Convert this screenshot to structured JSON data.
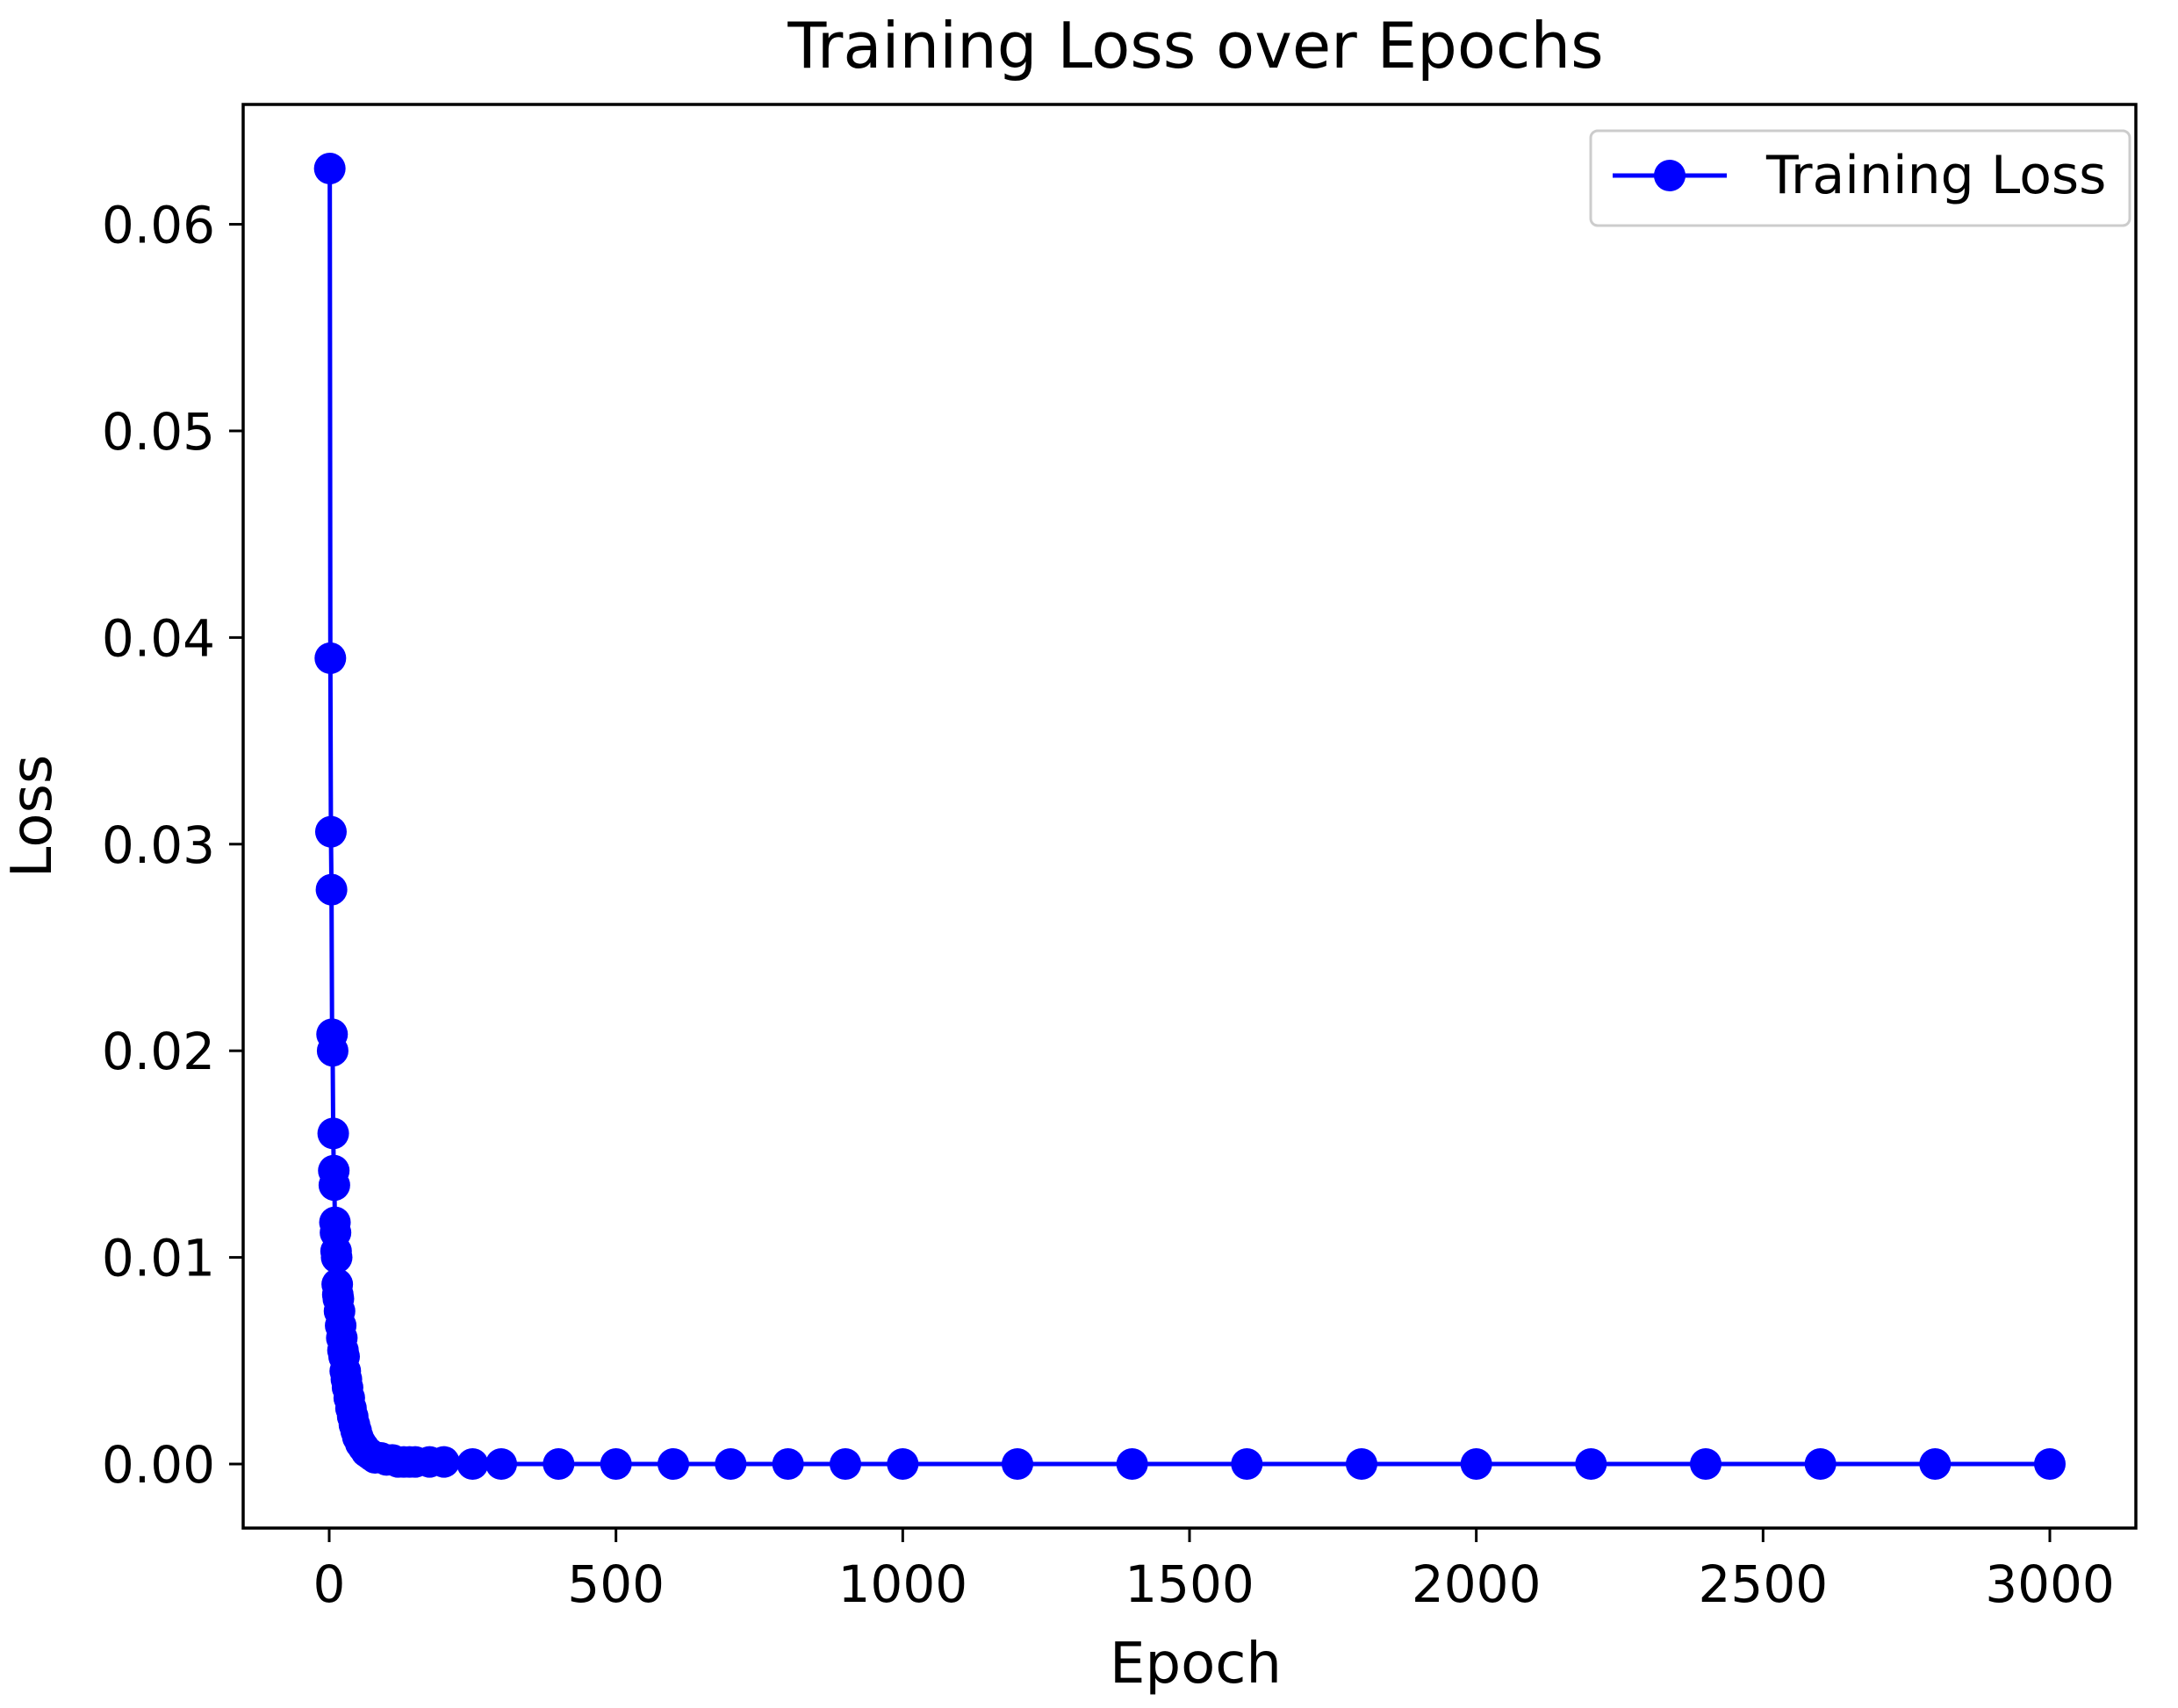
{
  "chart_data": {
    "type": "line",
    "title": "Training Loss over Epochs",
    "xlabel": "Epoch",
    "ylabel": "Loss",
    "xlim": [
      -150,
      3150
    ],
    "ylim": [
      -0.0031,
      0.0658
    ],
    "xticks": [
      0,
      500,
      1000,
      1500,
      2000,
      2500,
      3000
    ],
    "yticks": [
      0.0,
      0.01,
      0.02,
      0.03,
      0.04,
      0.05,
      0.06
    ],
    "ytick_labels": [
      "0.00",
      "0.01",
      "0.02",
      "0.03",
      "0.04",
      "0.05",
      "0.06"
    ],
    "grid": false,
    "legend_position": "upper-right",
    "series": [
      {
        "name": "Training Loss",
        "color": "#0000ff",
        "marker": "circle",
        "x": [
          1,
          2,
          3,
          4,
          5,
          6,
          7,
          8,
          9,
          10,
          11,
          12,
          13,
          14,
          15,
          16,
          18,
          20,
          22,
          24,
          26,
          28,
          30,
          32,
          35,
          38,
          41,
          44,
          47,
          50,
          55,
          60,
          65,
          70,
          75,
          80,
          90,
          100,
          110,
          120,
          130,
          140,
          150,
          175,
          200,
          250,
          300,
          400,
          500,
          600,
          700,
          800,
          900,
          1000,
          1200,
          1400,
          1600,
          1800,
          2000,
          2200,
          2400,
          2600,
          2800,
          3000
        ],
        "y": [
          0.0627,
          0.039,
          0.0306,
          0.0278,
          0.0208,
          0.02,
          0.016,
          0.0142,
          0.0135,
          0.0117,
          0.0112,
          0.0103,
          0.01,
          0.0087,
          0.0082,
          0.008,
          0.0074,
          0.0067,
          0.0061,
          0.0055,
          0.0052,
          0.0045,
          0.0041,
          0.0037,
          0.0032,
          0.0027,
          0.0023,
          0.0019,
          0.0016,
          0.0013,
          0.001,
          0.0008,
          0.0006,
          0.0005,
          0.0004,
          0.0003,
          0.0003,
          0.0002,
          0.0002,
          0.0001,
          0.0001,
          0.0001,
          0.0001,
          0.0001,
          0.0001,
          0.0,
          0.0,
          0.0,
          0.0,
          0.0,
          0.0,
          0.0,
          0.0,
          0.0,
          0.0,
          0.0,
          0.0,
          0.0,
          0.0,
          0.0,
          0.0,
          0.0,
          0.0,
          0.0
        ]
      }
    ]
  }
}
